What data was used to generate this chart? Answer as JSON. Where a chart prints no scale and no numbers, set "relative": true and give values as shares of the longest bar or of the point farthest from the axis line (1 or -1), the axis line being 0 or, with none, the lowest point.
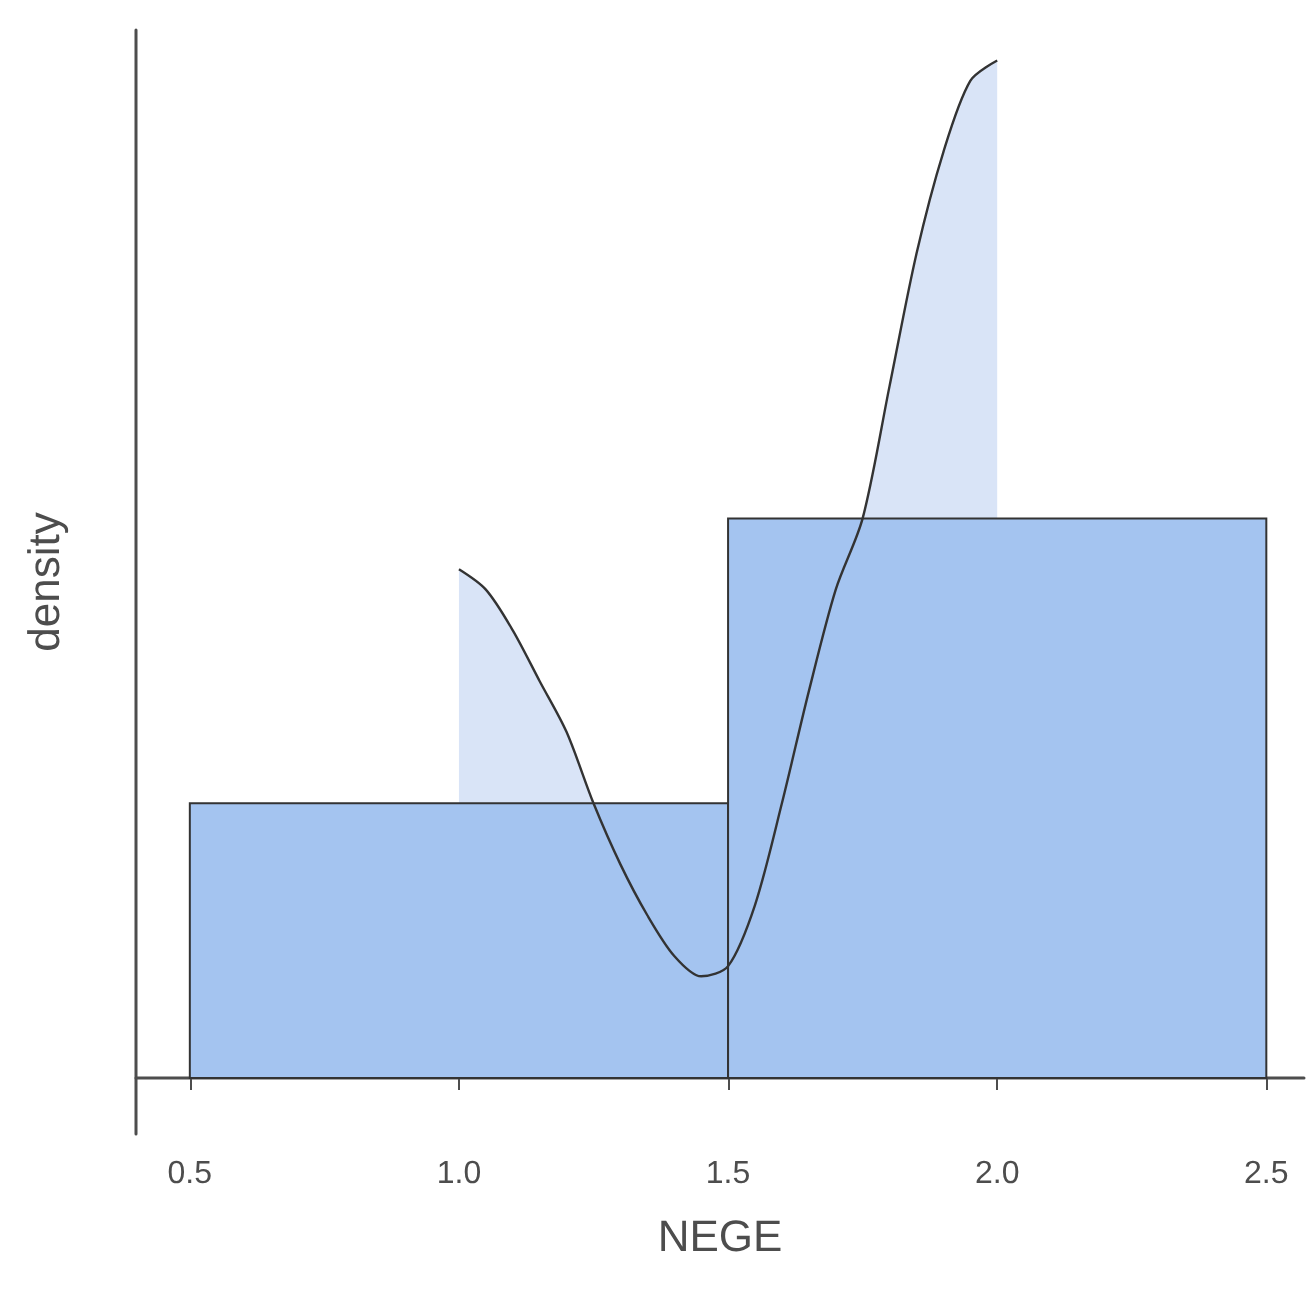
{
  "chart_data": {
    "type": "histogram",
    "xlabel": "NEGE",
    "ylabel": "density",
    "relative": true,
    "grid": false,
    "xlim": [
      0.4,
      2.57
    ],
    "xticks": [
      0.5,
      {
        "value": 1,
        "label": "1.0"
      },
      1.5,
      {
        "value": 2,
        "label": "2.0"
      },
      2.5
    ],
    "bins": [
      0.5,
      1.5,
      2.5
    ],
    "series": [
      {
        "type": "area",
        "color": "#d9e4f7",
        "x": [
          1.0,
          1.05,
          1.1,
          1.15,
          1.2,
          1.25,
          1.3,
          1.35,
          1.4,
          1.45,
          1.5,
          1.55,
          1.6,
          1.65,
          1.7,
          1.75,
          1.8,
          1.85,
          1.9,
          1.95,
          2.0
        ],
        "values": [
          0.5,
          0.48,
          0.44,
          0.39,
          0.34,
          0.27,
          0.21,
          0.16,
          0.12,
          0.1,
          0.11,
          0.17,
          0.27,
          0.38,
          0.48,
          0.55,
          0.68,
          0.81,
          0.91,
          0.98,
          1
        ]
      },
      {
        "color": "#a4c4f0",
        "values": [
          0.27,
          0.55
        ]
      }
    ]
  }
}
